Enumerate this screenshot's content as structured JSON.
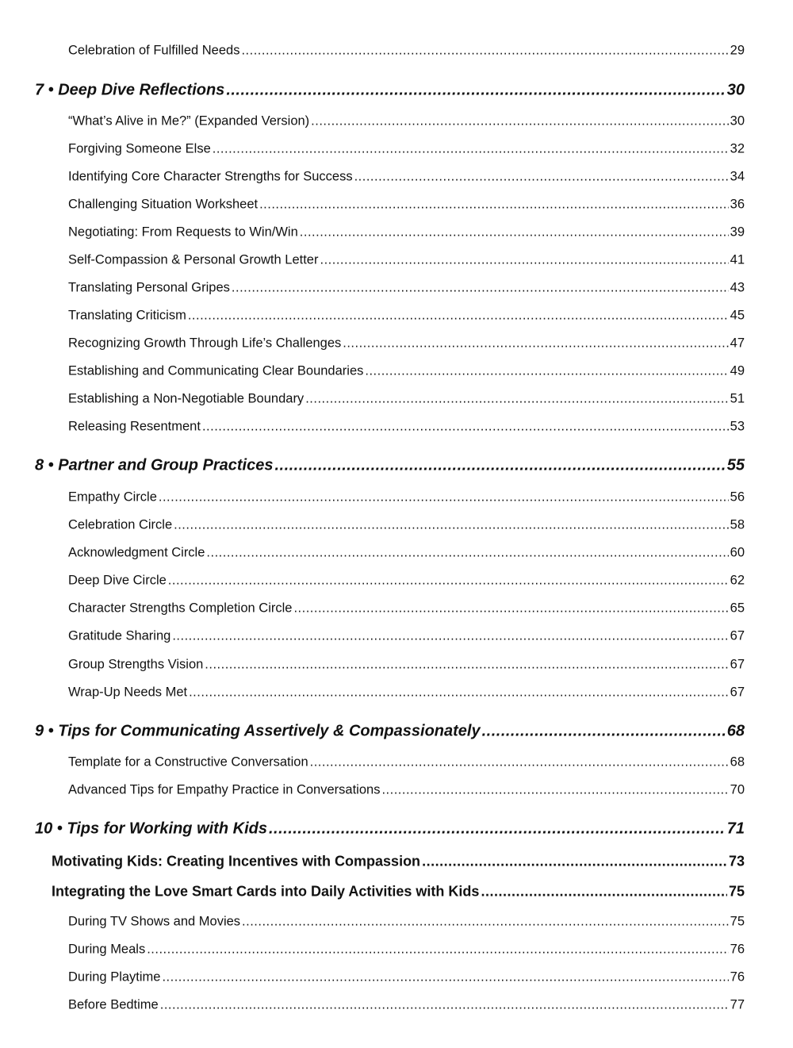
{
  "toc": [
    {
      "level": "item",
      "title": "Celebration of Fulfilled Needs",
      "page": "29"
    },
    {
      "level": "chapter",
      "title": "7 • Deep Dive Reflections",
      "page": "30"
    },
    {
      "level": "item",
      "title": "“What’s Alive in Me?” (Expanded Version)",
      "page": "30"
    },
    {
      "level": "item",
      "title": "Forgiving Someone Else",
      "page": "32"
    },
    {
      "level": "item",
      "title": "Identifying Core Character Strengths for Success",
      "page": "34"
    },
    {
      "level": "item",
      "title": "Challenging Situation Worksheet",
      "page": "36"
    },
    {
      "level": "item",
      "title": "Negotiating: From Requests to Win/Win",
      "page": "39"
    },
    {
      "level": "item",
      "title": "Self-Compassion & Personal Growth Letter",
      "page": "41"
    },
    {
      "level": "item",
      "title": "Translating Personal Gripes",
      "page": "43"
    },
    {
      "level": "item",
      "title": "Translating Criticism",
      "page": "45"
    },
    {
      "level": "item",
      "title": "Recognizing Growth Through Life’s Challenges",
      "page": "47"
    },
    {
      "level": "item",
      "title": "Establishing and Communicating Clear Boundaries",
      "page": "49"
    },
    {
      "level": "item",
      "title": "Establishing a Non-Negotiable Boundary",
      "page": "51"
    },
    {
      "level": "item",
      "title": "Releasing Resentment",
      "page": "53"
    },
    {
      "level": "chapter",
      "title": "8 • Partner and Group Practices",
      "page": "55"
    },
    {
      "level": "item",
      "title": "Empathy Circle",
      "page": "56"
    },
    {
      "level": "item",
      "title": "Celebration Circle",
      "page": "58"
    },
    {
      "level": "item",
      "title": "Acknowledgment Circle",
      "page": "60"
    },
    {
      "level": "item",
      "title": "Deep Dive Circle",
      "page": "62"
    },
    {
      "level": "item",
      "title": "Character Strengths Completion Circle",
      "page": "65"
    },
    {
      "level": "item",
      "title": "Gratitude Sharing",
      "page": "67"
    },
    {
      "level": "item",
      "title": "Group Strengths Vision",
      "page": "67"
    },
    {
      "level": "item",
      "title": "Wrap-Up Needs Met",
      "page": "67"
    },
    {
      "level": "chapter",
      "title": "9 • Tips for Communicating Assertively & Compassionately",
      "page": "68"
    },
    {
      "level": "item",
      "title": "Template for a Constructive Conversation",
      "page": "68"
    },
    {
      "level": "item",
      "title": "Advanced Tips for Empathy Practice in Conversations",
      "page": "70"
    },
    {
      "level": "chapter",
      "title": "10 • Tips for Working with Kids",
      "page": "71"
    },
    {
      "level": "section",
      "title": "Motivating Kids: Creating Incentives with Compassion",
      "page": "73"
    },
    {
      "level": "section",
      "title": "Integrating the Love Smart Cards into Daily Activities with Kids",
      "page": "75"
    },
    {
      "level": "item",
      "title": "During TV Shows and Movies",
      "page": "75"
    },
    {
      "level": "item",
      "title": "During Meals",
      "page": "76"
    },
    {
      "level": "item",
      "title": "During Playtime",
      "page": "76"
    },
    {
      "level": "item",
      "title": "Before Bedtime",
      "page": "77"
    }
  ]
}
